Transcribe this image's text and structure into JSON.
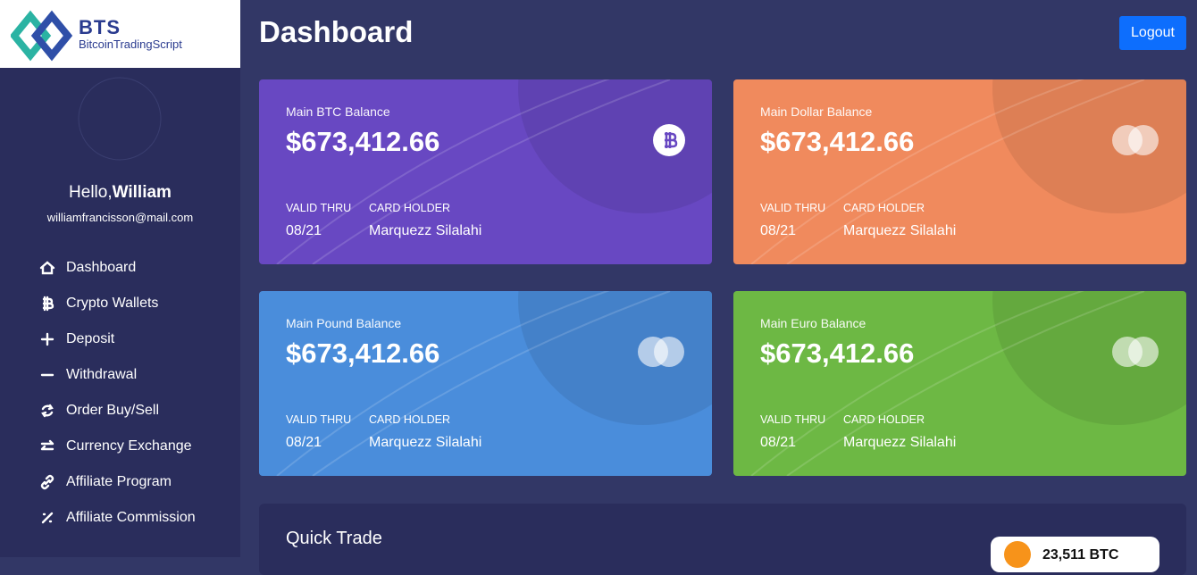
{
  "logo": {
    "title": "BTS",
    "subtitle": "BitcoinTradingScript"
  },
  "header": {
    "title": "Dashboard",
    "logout": "Logout"
  },
  "user": {
    "greeting": "Hello,",
    "name": "William",
    "email": "williamfrancisson@mail.com"
  },
  "nav": [
    "Dashboard",
    "Crypto Wallets",
    "Deposit",
    "Withdrawal",
    "Order Buy/Sell",
    "Currency Exchange",
    "Affiliate Program",
    "Affiliate Commission"
  ],
  "cards": [
    {
      "label": "Main BTC Balance",
      "amount": "$673,412.66",
      "valid_thru_label": "VALID THRU",
      "valid_thru": "08/21",
      "holder_label": "CARD HOLDER",
      "holder": "Marquezz Silalahi"
    },
    {
      "label": "Main Dollar Balance",
      "amount": "$673,412.66",
      "valid_thru_label": "VALID THRU",
      "valid_thru": "08/21",
      "holder_label": "CARD HOLDER",
      "holder": "Marquezz Silalahi"
    },
    {
      "label": "Main Pound Balance",
      "amount": "$673,412.66",
      "valid_thru_label": "VALID THRU",
      "valid_thru": "08/21",
      "holder_label": "CARD HOLDER",
      "holder": "Marquezz Silalahi"
    },
    {
      "label": "Main Euro Balance",
      "amount": "$673,412.66",
      "valid_thru_label": "VALID THRU",
      "valid_thru": "08/21",
      "holder_label": "CARD HOLDER",
      "holder": "Marquezz Silalahi"
    }
  ],
  "quick_trade": {
    "title": "Quick Trade",
    "balance": "23,511 BTC"
  }
}
